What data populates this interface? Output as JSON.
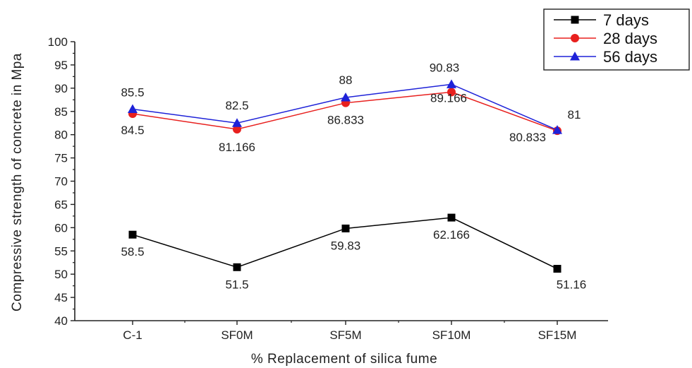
{
  "chart_data": {
    "type": "line",
    "title": "",
    "xlabel": "% Replacement of silica fume",
    "ylabel": "Compressive strength of concrete in Mpa",
    "categories": [
      "C-1",
      "SF0M",
      "SF5M",
      "SF10M",
      "SF15M"
    ],
    "ylim": [
      40,
      100
    ],
    "yticks": [
      "40",
      "45",
      "50",
      "55",
      "60",
      "65",
      "70",
      "75",
      "80",
      "85",
      "90",
      "95",
      "100"
    ],
    "grid": false,
    "legend_position": "top-right",
    "series": [
      {
        "name": "7 days",
        "color": "#000000",
        "marker": "square",
        "values": [
          58.5,
          51.5,
          59.83,
          62.166,
          51.16
        ],
        "labels": [
          "58.5",
          "51.5",
          "59.83",
          "62.166",
          "51.16"
        ]
      },
      {
        "name": "28 days",
        "color": "#e8201e",
        "marker": "circle",
        "values": [
          84.5,
          81.166,
          86.833,
          89.166,
          80.833
        ],
        "labels": [
          "84.5",
          "81.166",
          "86.833",
          "89.166",
          "80.833"
        ]
      },
      {
        "name": "56 days",
        "color": "#1e22d8",
        "marker": "triangle",
        "values": [
          85.5,
          82.5,
          88,
          90.83,
          81
        ],
        "labels": [
          "85.5",
          "82.5",
          "88",
          "90.83",
          "81"
        ]
      }
    ]
  }
}
